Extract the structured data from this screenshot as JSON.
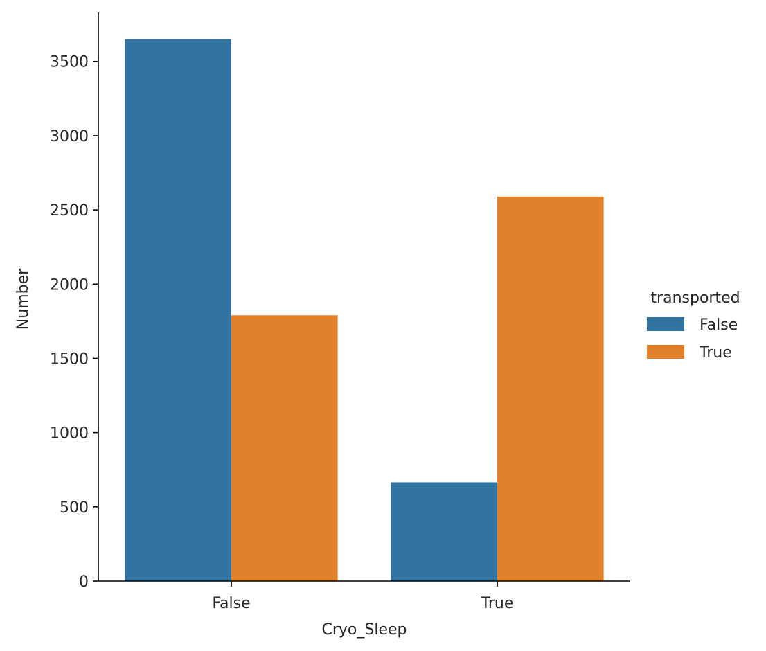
{
  "chart_data": {
    "type": "bar",
    "categories": [
      "False",
      "True"
    ],
    "series": [
      {
        "name": "False",
        "values": [
          3650,
          665
        ],
        "color": "#3274a1"
      },
      {
        "name": "True",
        "values": [
          1790,
          2590
        ],
        "color": "#e1812c"
      }
    ],
    "xlabel": "Cryo_Sleep",
    "ylabel": "Number",
    "ylim": [
      0,
      3830
    ],
    "yticks": [
      0,
      500,
      1000,
      1500,
      2000,
      2500,
      3000,
      3500
    ],
    "legend": {
      "title": "transported",
      "placement": "right"
    },
    "grid": false
  }
}
